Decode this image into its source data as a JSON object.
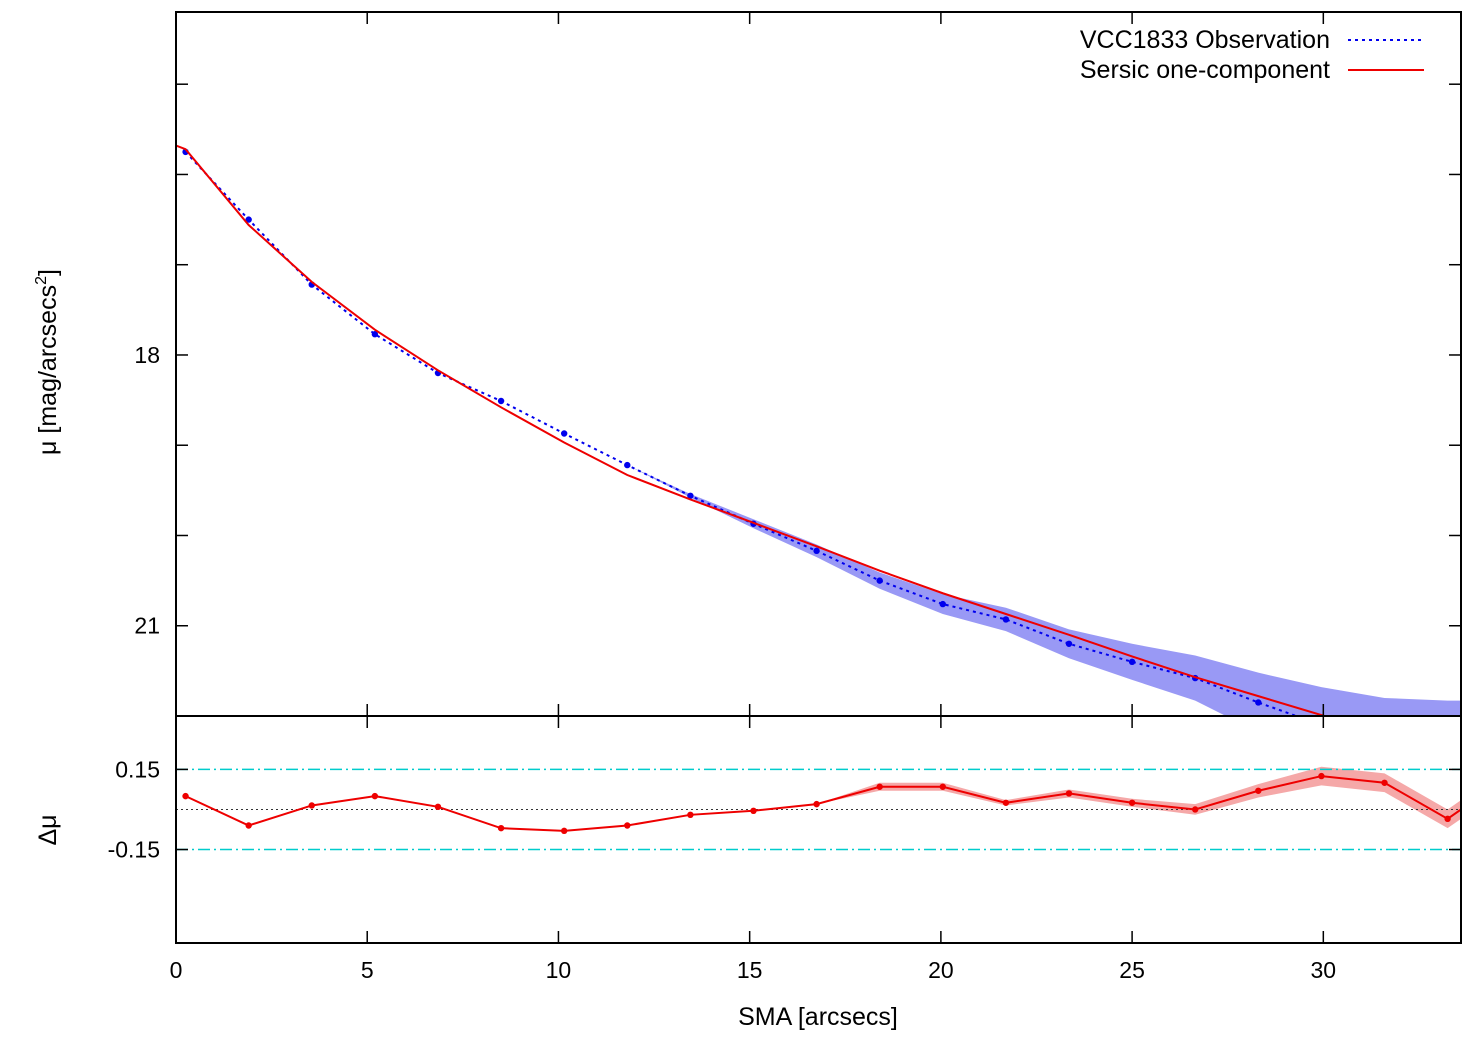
{
  "chart_data": [
    {
      "panel": "profile",
      "type": "line",
      "ylabel_main": "μ [mag/arcsecs",
      "ylabel_sup": "2",
      "ylabel_close": "]",
      "xlim": [
        0,
        33.6
      ],
      "ylim": [
        22.0,
        14.2
      ],
      "y_ticks": [
        15,
        16,
        17,
        18,
        19,
        20,
        21,
        22
      ],
      "y_tick_labels": [
        {
          "value": 18,
          "label": "18"
        },
        {
          "value": 21,
          "label": "21"
        }
      ],
      "legend_position": "top-right",
      "series": [
        {
          "name": "VCC1833 Observation",
          "style": "dotted",
          "color": "#0000ee",
          "band_color": "#9999f5",
          "x": [
            0.25,
            1.9,
            3.55,
            5.2,
            6.85,
            8.5,
            10.15,
            11.8,
            13.45,
            15.1,
            16.75,
            18.4,
            20.05,
            21.7,
            23.35,
            25.0,
            26.65,
            28.3,
            29.95,
            31.6,
            33.25
          ],
          "y": [
            15.75,
            16.5,
            17.22,
            17.77,
            18.2,
            18.51,
            18.87,
            19.22,
            19.56,
            19.87,
            20.17,
            20.5,
            20.76,
            20.93,
            21.2,
            21.4,
            21.58,
            21.85,
            22.1,
            22.28,
            22.35
          ],
          "band_half_width": [
            0.0,
            0.0,
            0.0,
            0.0,
            0.0,
            0.0,
            0.0,
            0.0,
            0.02,
            0.05,
            0.07,
            0.09,
            0.11,
            0.13,
            0.16,
            0.2,
            0.25,
            0.33,
            0.42,
            0.48,
            0.52
          ]
        },
        {
          "name": "Sersic one-component",
          "style": "solid",
          "color": "#ee0000",
          "x": [
            0.0,
            0.25,
            1.9,
            3.55,
            5.2,
            6.85,
            8.5,
            10.15,
            11.8,
            13.45,
            15.1,
            16.75,
            18.4,
            20.05,
            21.7,
            23.35,
            25.0,
            26.65,
            28.3,
            29.95,
            31.6,
            33.6
          ],
          "y": [
            15.68,
            15.72,
            16.56,
            17.19,
            17.72,
            18.17,
            18.58,
            18.97,
            19.33,
            19.6,
            19.86,
            20.12,
            20.39,
            20.64,
            20.87,
            21.1,
            21.34,
            21.57,
            21.78,
            21.99,
            22.2,
            22.44
          ]
        }
      ]
    },
    {
      "panel": "residual",
      "type": "line",
      "xlabel": "SMA [arcsecs]",
      "ylabel": "Δμ",
      "xlim": [
        0,
        33.6
      ],
      "ylim": [
        -0.5,
        0.35
      ],
      "x_ticks": [
        0,
        5,
        10,
        15,
        20,
        25,
        30
      ],
      "x_tick_labels": [
        "0",
        "5",
        "10",
        "15",
        "20",
        "25",
        "30"
      ],
      "y_tick_labels": [
        {
          "value": 0.15,
          "label": "0.15"
        },
        {
          "value": -0.15,
          "label": "-0.15"
        }
      ],
      "reference_lines": [
        {
          "value": 0.15,
          "style": "dash-dot",
          "color": "#00cccc"
        },
        {
          "value": -0.15,
          "style": "dash-dot",
          "color": "#00cccc"
        },
        {
          "value": 0.0,
          "style": "dotted",
          "color": "#333333"
        }
      ],
      "series": [
        {
          "color": "#ee0000",
          "band_color": "#f5a8a8",
          "x": [
            0.25,
            1.9,
            3.55,
            5.2,
            6.85,
            8.5,
            10.15,
            11.8,
            13.45,
            15.1,
            16.75,
            18.4,
            20.05,
            21.7,
            23.35,
            25.0,
            26.65,
            28.3,
            29.95,
            31.6,
            33.25,
            33.6
          ],
          "y": [
            0.05,
            -0.06,
            0.015,
            0.05,
            0.01,
            -0.07,
            -0.08,
            -0.06,
            -0.02,
            -0.005,
            0.02,
            0.085,
            0.085,
            0.025,
            0.06,
            0.025,
            0.0,
            0.07,
            0.125,
            0.1,
            -0.035,
            0.0
          ],
          "band_half_width": [
            0.0,
            0.0,
            0.0,
            0.0,
            0.0,
            0.0,
            0.0,
            0.0,
            0.0,
            0.0,
            0.0,
            0.015,
            0.015,
            0.01,
            0.015,
            0.015,
            0.02,
            0.025,
            0.035,
            0.035,
            0.035,
            0.035
          ]
        }
      ]
    }
  ]
}
